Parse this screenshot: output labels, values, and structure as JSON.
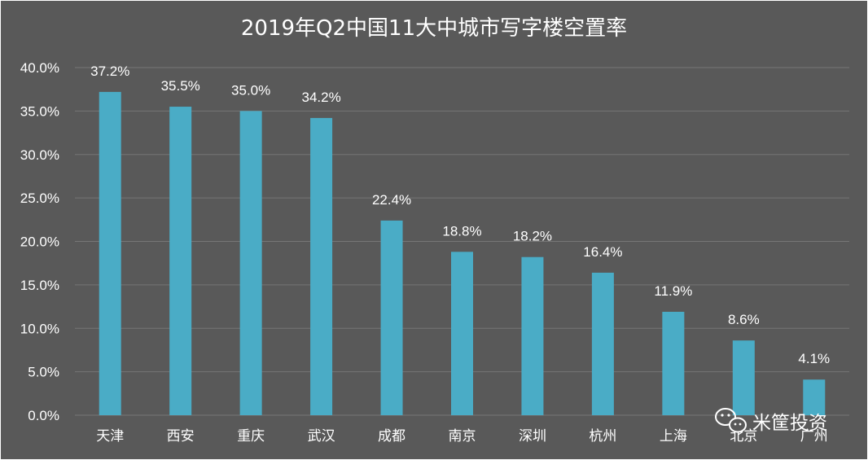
{
  "colors": {
    "background": "#595959",
    "bar": "#4aacc6",
    "grid": "#767676",
    "text": "#ffffff",
    "outer_border": "#ffffff"
  },
  "chart_data": {
    "type": "bar",
    "title": "2019年Q2中国11大中城市写字楼空置率",
    "categories": [
      "天津",
      "西安",
      "重庆",
      "武汉",
      "成都",
      "南京",
      "深圳",
      "杭州",
      "上海",
      "北京",
      "广州"
    ],
    "values": [
      37.2,
      35.5,
      35.0,
      34.2,
      22.4,
      18.8,
      18.2,
      16.4,
      11.9,
      8.6,
      4.1
    ],
    "value_labels": [
      "37.2%",
      "35.5%",
      "35.0%",
      "34.2%",
      "22.4%",
      "18.8%",
      "18.2%",
      "16.4%",
      "11.9%",
      "8.6%",
      "4.1%"
    ],
    "y_ticks": [
      0,
      5,
      10,
      15,
      20,
      25,
      30,
      35,
      40
    ],
    "y_tick_labels": [
      "0.0%",
      "5.0%",
      "10.0%",
      "15.0%",
      "20.0%",
      "25.0%",
      "30.0%",
      "35.0%",
      "40.0%"
    ],
    "ylim": [
      0,
      40
    ],
    "grid": true,
    "legend": "none"
  },
  "watermark": {
    "text": "米筐投资",
    "icon": "wechat-icon"
  }
}
